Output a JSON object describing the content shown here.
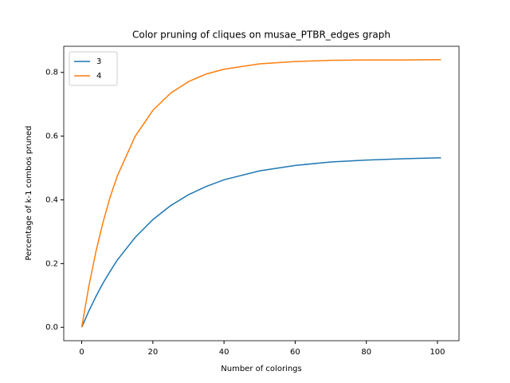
{
  "chart_data": {
    "type": "line",
    "title": "Color pruning of cliques on musae_PTBR_edges graph",
    "xlabel": "Number of colorings",
    "ylabel": "Percentage of k-1 combos pruned",
    "x": [
      0,
      2,
      4,
      6,
      8,
      10,
      15,
      20,
      25,
      30,
      35,
      40,
      50,
      60,
      70,
      80,
      90,
      101
    ],
    "series": [
      {
        "name": "3",
        "color": "#1f77b4",
        "values": [
          0,
          0.051,
          0.097,
          0.139,
          0.176,
          0.211,
          0.282,
          0.338,
          0.382,
          0.416,
          0.442,
          0.463,
          0.491,
          0.508,
          0.519,
          0.525,
          0.529,
          0.532
        ]
      },
      {
        "name": "4",
        "color": "#ff7f0e",
        "values": [
          0,
          0.129,
          0.238,
          0.33,
          0.409,
          0.475,
          0.599,
          0.681,
          0.735,
          0.771,
          0.795,
          0.81,
          0.827,
          0.834,
          0.838,
          0.839,
          0.839,
          0.84
        ]
      }
    ],
    "xlim": [
      -5.05,
      106.05
    ],
    "ylim": [
      -0.042,
      0.882
    ],
    "xticks": [
      0,
      20,
      40,
      60,
      80,
      100
    ],
    "yticks": [
      {
        "value": 0,
        "label": "0.0"
      },
      0.2,
      0.4,
      0.6,
      0.8
    ],
    "legend": "upper left",
    "grid": false
  }
}
